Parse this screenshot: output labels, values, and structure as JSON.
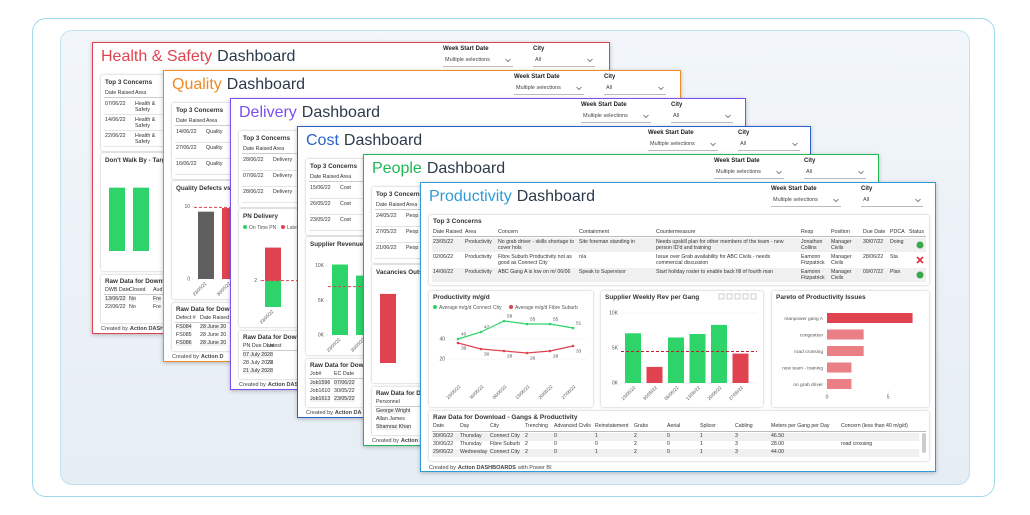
{
  "dashboards": [
    {
      "title": "Health & Safety",
      "title_suffix": "Dashboard",
      "color": "#e0434f",
      "filters": [
        {
          "label": "Week Start Date",
          "value": "Multiple selections"
        },
        {
          "label": "City",
          "value": "All"
        }
      ],
      "concerns": {
        "title": "Top 3 Concerns",
        "headers": [
          "Date Raised",
          "Area"
        ],
        "rows": [
          [
            "07/06/22",
            "Health & Safety"
          ],
          [
            "14/06/22",
            "Health & Safety"
          ],
          [
            "22/06/22",
            "Health & Safety"
          ]
        ]
      },
      "chart": {
        "type": "bar",
        "title": "Don't Walk By - Targ",
        "ylim": [
          0,
          12
        ],
        "series": [
          {
            "colors": [
              "#2ed36a",
              "#2ed36a"
            ],
            "values": [
              10,
              10
            ]
          }
        ]
      },
      "raw": {
        "title": "Raw Data for Downl",
        "headers": [
          "DWB Date",
          "Closed",
          "Aud"
        ],
        "rows": [
          [
            "13/06/22",
            "No",
            "Fre"
          ],
          [
            "22/06/22",
            "No",
            "Fre"
          ]
        ]
      },
      "footer": [
        "Created by",
        "Action DASHB"
      ]
    },
    {
      "title": "Quality",
      "title_suffix": "Dashboard",
      "color": "#f08a24",
      "filters": [
        {
          "label": "Week Start Date",
          "value": "Multiple selections"
        },
        {
          "label": "City",
          "value": "All"
        }
      ],
      "concerns": {
        "title": "Top 3 Concerns",
        "headers": [
          "Date Raised",
          "Area"
        ],
        "rows": [
          [
            "14/06/22",
            "Quality"
          ],
          [
            "27/06/22",
            "Quality"
          ],
          [
            "16/06/22",
            "Quality"
          ]
        ]
      },
      "chart": {
        "type": "bar",
        "title": "Quality Defects vs",
        "categories": [
          "23/05/22",
          "30/05/22"
        ],
        "ylim": [
          0,
          10.5
        ],
        "yticks": [
          0,
          10
        ],
        "target": 9.9,
        "series": [
          {
            "colors": [
              "#5f5f5f",
              "#e0434f"
            ],
            "values": [
              9.3,
              9.8
            ]
          }
        ]
      },
      "raw": {
        "title": "Raw Data for Down",
        "headers": [
          "Defect #",
          "Date Raised"
        ],
        "rows": [
          [
            "FS084",
            "28 June 20"
          ],
          [
            "FS085",
            "28 June 20"
          ],
          [
            "FS086",
            "28 June 20"
          ]
        ]
      },
      "footer": [
        "Created by",
        "Action D"
      ]
    },
    {
      "title": "Delivery",
      "title_suffix": "Dashboard",
      "color": "#7b4ff0",
      "filters": [
        {
          "label": "Week Start Date",
          "value": "Multiple selections"
        },
        {
          "label": "City",
          "value": "All"
        }
      ],
      "concerns": {
        "title": "Top 3 Concerns",
        "headers": [
          "Date Raised",
          "Area"
        ],
        "rows": [
          [
            "28/06/22",
            "Delivery"
          ],
          [
            "07/06/22",
            "Delivery"
          ],
          [
            "28/06/22",
            "Delivery"
          ]
        ]
      },
      "chart": {
        "type": "bar",
        "title": "PN Delivery",
        "categories": [
          "23/05/22"
        ],
        "ylim": [
          0,
          5
        ],
        "yticks": [
          2
        ],
        "target": 2,
        "series": [
          {
            "name": "On Time PN",
            "color": "#2ed36a",
            "values": [
              2
            ]
          },
          {
            "name": "Late PN",
            "color": "#e0434f",
            "values": [
              2.5
            ]
          }
        ]
      },
      "raw": {
        "title": "Raw Data for Downl",
        "headers": [
          "PN Due Date",
          "Latest"
        ],
        "rows": [
          [
            "07 July 2022",
            "28"
          ],
          [
            "28 July 2022",
            "28"
          ],
          [
            "21 July 2022",
            "28"
          ]
        ]
      },
      "footer": [
        "Created by",
        "Action DASH"
      ]
    },
    {
      "title": "Cost",
      "title_suffix": "Dashboard",
      "color": "#2a62c9",
      "filters": [
        {
          "label": "Week Start Date",
          "value": "Multiple selections"
        },
        {
          "label": "City",
          "value": "All"
        }
      ],
      "concerns": {
        "title": "Top 3 Concerns",
        "headers": [
          "Date Raised",
          "Area"
        ],
        "rows": [
          [
            "15/06/22",
            "Cost"
          ],
          [
            "26/05/22",
            "Cost"
          ],
          [
            "23/05/22",
            "Cost"
          ]
        ]
      },
      "chart": {
        "type": "bar",
        "title": "Supplier Revenue",
        "categories": [
          "23/05/22",
          "30/05/22"
        ],
        "ylim": [
          0,
          11000
        ],
        "yticks": [
          {
            "value": 0,
            "label": "0K"
          },
          {
            "value": 5000,
            "label": "5K"
          },
          {
            "value": 10000,
            "label": "10K"
          }
        ],
        "target": 7000,
        "series": [
          {
            "colors": [
              "#2ed36a",
              "#2ed36a"
            ],
            "values": [
              10200,
              8600
            ]
          }
        ]
      },
      "raw": {
        "title": "Raw Data for Down",
        "headers": [
          "Job#",
          "EC Date"
        ],
        "rows": [
          [
            "Job1596",
            "07/06/22"
          ],
          [
            "Job1610",
            "30/05/22"
          ],
          [
            "Job1613",
            "23/05/22"
          ]
        ]
      },
      "footer": [
        "Created by",
        "Action DA"
      ]
    },
    {
      "title": "People",
      "title_suffix": "Dashboard",
      "color": "#1fb855",
      "filters": [
        {
          "label": "Week Start Date",
          "value": "Multiple selections"
        },
        {
          "label": "City",
          "value": "All"
        }
      ],
      "concerns": {
        "title": "Top 3 Concerns",
        "headers": [
          "Date Raised",
          "Area"
        ],
        "rows": [
          [
            "24/05/22",
            "Peop"
          ],
          [
            "27/05/22",
            "Peop"
          ],
          [
            "21/06/22",
            "Peop"
          ]
        ]
      },
      "chart": {
        "type": "bar",
        "title": "Vacancies Outst",
        "ylim": [
          0,
          11
        ],
        "series": [
          {
            "colors": [
              "#e0434f"
            ],
            "values": [
              10
            ]
          }
        ]
      },
      "raw": {
        "title": "Raw Data for Dow",
        "headers": [
          "Personnel"
        ],
        "rows": [
          [
            "George Wright"
          ],
          [
            "Allan James"
          ],
          [
            "Shamraz Khan"
          ]
        ]
      },
      "footer": [
        "Created by",
        "Action DA"
      ]
    },
    {
      "title": "Productivity",
      "title_suffix": "Dashboard",
      "color": "#2e9bd6",
      "filters": [
        {
          "label": "Week Start Date",
          "value": "Multiple selections"
        },
        {
          "label": "City",
          "value": "All"
        }
      ],
      "concerns": {
        "title": "Top 3 Concerns",
        "headers": [
          "Date Raised",
          "Area",
          "Concern",
          "Containment",
          "Countermeasure",
          "Resp",
          "Position",
          "Due Date",
          "PDCA",
          "Status"
        ],
        "rows": [
          [
            "23/05/22",
            "Productivity",
            "No grab driver - skills shortage to cover hols",
            "Site foreman standing in",
            "Needs upskill plan for other members of the team - new person ID'd and training",
            "Jonathon Collins",
            "Manager Civils",
            "30/07/22",
            "Doing"
          ],
          [
            "02/06/22",
            "Productivity",
            "Fibre Suburb Productivity not as good as Connect City",
            "n/a",
            "Issue over Grab availability for ABC Civils - needs commercial discussion",
            "Eamonn Fitzpatrick",
            "Manager Civils",
            "28/06/22",
            "Sta"
          ],
          [
            "14/06/22",
            "Productivity",
            "ABC Gang A is low on m/ 06/06",
            "Speak to Supervisor",
            "Start holiday roster to enable back fill of fourth man",
            "Eamonn Fitzpatrick",
            "Manager Civils",
            "09/07/22",
            "Plan"
          ]
        ]
      },
      "line_chart": {
        "type": "line",
        "title": "Productivity m/g/d",
        "categories": [
          "23/05/22",
          "30/05/22",
          "06/06/22",
          "13/06/22",
          "20/06/22",
          "27/06/22"
        ],
        "ylim": [
          0,
          65
        ],
        "yticks": [
          20,
          40
        ],
        "series": [
          {
            "name": "Average m/g/d Connect City",
            "color": "#2ed36a",
            "values": [
              40,
              47,
              58,
              55,
              55,
              51
            ]
          },
          {
            "name": "Average m/g/d Fibre Suburb",
            "color": "#e0434f",
            "values": [
              36,
              30,
              28,
              26,
              28,
              33
            ]
          }
        ]
      },
      "bar_chart": {
        "type": "bar",
        "title": "Supplier Weekly Rev per Gang",
        "categories": [
          "23/05/22",
          "30/05/22",
          "06/06/22",
          "13/06/22",
          "20/06/22",
          "27/06/22"
        ],
        "ylim": [
          0,
          11000
        ],
        "yticks": [
          {
            "value": 0,
            "label": "0K"
          },
          {
            "value": 5000,
            "label": "5K"
          },
          {
            "value": 10000,
            "label": "10K"
          }
        ],
        "values": [
          7100,
          2300,
          6500,
          7000,
          8300,
          4200
        ],
        "colors": [
          "#2ed36a",
          "#e0434f",
          "#2ed36a",
          "#2ed36a",
          "#2ed36a",
          "#e0434f"
        ],
        "target": 4500
      },
      "pareto": {
        "type": "bar",
        "orientation": "horizontal",
        "title": "Pareto of Productivity Issues",
        "categories": [
          "manpower gang A",
          "congestion",
          "road crossing",
          "new team - training",
          "no grab driver"
        ],
        "values": [
          7,
          3,
          3,
          2,
          2
        ],
        "colors": [
          "#e0434f",
          "#ea7f86",
          "#ea7f86",
          "#ea7f86",
          "#ea7f86"
        ],
        "xlim": [
          0,
          7.2
        ],
        "xticks": [
          0,
          5
        ]
      },
      "raw": {
        "title": "Raw Data for Download - Gangs & Productivity",
        "headers": [
          "Date",
          "Day",
          "City",
          "Trenching",
          "Advanced Civils",
          "Reinstatement",
          "Grabs",
          "Aerial",
          "Splicer",
          "Cabling",
          "Meters per Gang per Day",
          "Concern (less than 40 m/g/d)"
        ],
        "rows": [
          [
            "30/06/22",
            "Thursday",
            "Connect City",
            "2",
            "0",
            "1",
            "2",
            "0",
            "1",
            "3",
            "46.50"
          ],
          [
            "30/06/22",
            "Thursday",
            "Fibre Suburb",
            "2",
            "0",
            "0",
            "2",
            "0",
            "1",
            "3",
            "28.00",
            "road crossing"
          ],
          [
            "29/06/22",
            "Wednesday",
            "Connect City",
            "2",
            "0",
            "1",
            "2",
            "0",
            "1",
            "3",
            "44.00"
          ]
        ]
      },
      "footer": [
        "Created by",
        "Action DASHBOARDS",
        "with Power BI"
      ]
    }
  ]
}
